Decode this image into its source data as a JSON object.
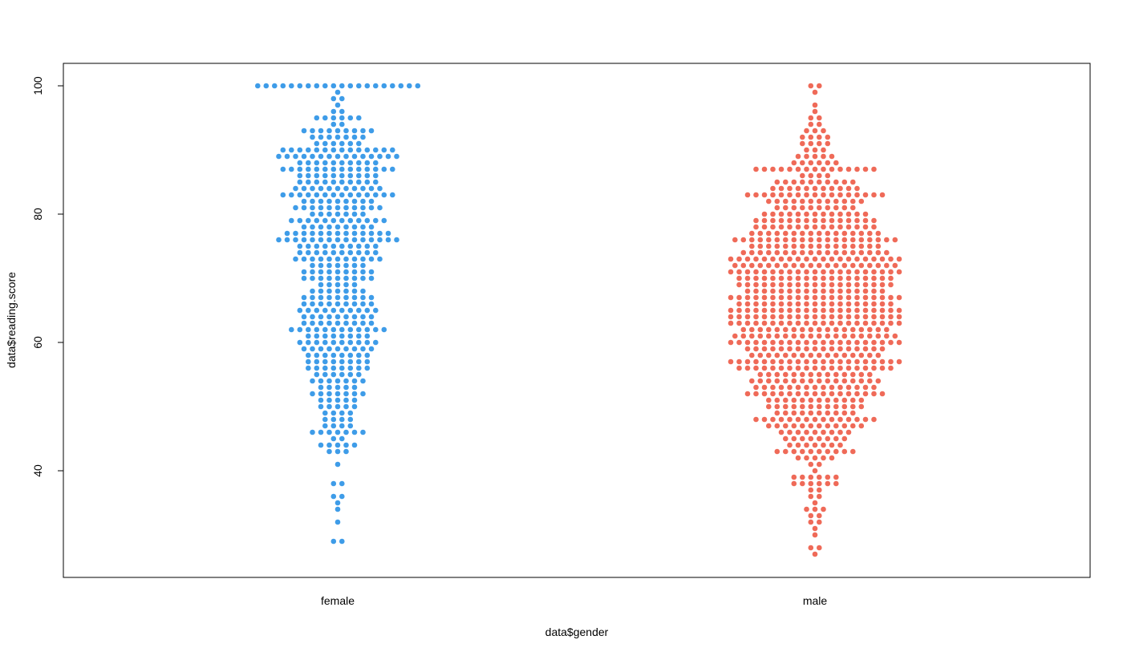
{
  "chart_data": {
    "type": "scatter",
    "subtype": "beeswarm",
    "title": "",
    "xlabel": "data$gender",
    "ylabel": "data$reading.score",
    "categories": [
      "female",
      "male"
    ],
    "ylim": [
      24,
      104
    ],
    "yticks": [
      40,
      60,
      80,
      100
    ],
    "grid": false,
    "legend": "none",
    "colors": {
      "female": "#3e9ce8",
      "male": "#ef6a58"
    },
    "series": [
      {
        "category": "female",
        "values": [
          100,
          100,
          100,
          100,
          100,
          100,
          100,
          100,
          100,
          100,
          100,
          100,
          100,
          100,
          100,
          100,
          100,
          100,
          100,
          100,
          99,
          98,
          98,
          97,
          96,
          96,
          95,
          95,
          95,
          95,
          95,
          95,
          94,
          94,
          93,
          93,
          93,
          93,
          93,
          93,
          93,
          93,
          93,
          92,
          92,
          92,
          92,
          92,
          92,
          92,
          91,
          91,
          91,
          91,
          91,
          91,
          90,
          90,
          90,
          90,
          90,
          90,
          90,
          90,
          90,
          90,
          90,
          90,
          90,
          90,
          89,
          89,
          89,
          89,
          89,
          89,
          89,
          89,
          89,
          89,
          89,
          89,
          89,
          89,
          89,
          88,
          88,
          88,
          88,
          88,
          88,
          88,
          88,
          88,
          88,
          87,
          87,
          87,
          87,
          87,
          87,
          87,
          87,
          87,
          87,
          87,
          87,
          87,
          87,
          86,
          86,
          86,
          86,
          86,
          86,
          86,
          86,
          86,
          86,
          85,
          85,
          85,
          85,
          85,
          85,
          85,
          85,
          85,
          85,
          84,
          84,
          84,
          84,
          84,
          84,
          84,
          84,
          84,
          84,
          84,
          83,
          83,
          83,
          83,
          83,
          83,
          83,
          83,
          83,
          83,
          83,
          83,
          83,
          83,
          82,
          82,
          82,
          82,
          82,
          82,
          82,
          82,
          82,
          81,
          81,
          81,
          81,
          81,
          81,
          81,
          81,
          81,
          81,
          81,
          80,
          80,
          80,
          80,
          80,
          80,
          80,
          79,
          79,
          79,
          79,
          79,
          79,
          79,
          79,
          79,
          79,
          79,
          79,
          78,
          78,
          78,
          78,
          78,
          78,
          78,
          78,
          78,
          77,
          77,
          77,
          77,
          77,
          77,
          77,
          77,
          77,
          77,
          77,
          77,
          77,
          76,
          76,
          76,
          76,
          76,
          76,
          76,
          76,
          76,
          76,
          76,
          76,
          76,
          76,
          76,
          75,
          75,
          75,
          75,
          75,
          75,
          75,
          75,
          75,
          75,
          74,
          74,
          74,
          74,
          74,
          74,
          74,
          74,
          74,
          74,
          73,
          73,
          73,
          73,
          73,
          73,
          73,
          73,
          73,
          73,
          73,
          72,
          72,
          72,
          72,
          72,
          72,
          72,
          71,
          71,
          71,
          71,
          71,
          71,
          71,
          71,
          71,
          70,
          70,
          70,
          70,
          70,
          70,
          70,
          70,
          70,
          69,
          69,
          69,
          69,
          69,
          68,
          68,
          68,
          68,
          68,
          68,
          68,
          67,
          67,
          67,
          67,
          67,
          67,
          67,
          67,
          67,
          66,
          66,
          66,
          66,
          66,
          66,
          66,
          66,
          66,
          65,
          65,
          65,
          65,
          65,
          65,
          65,
          65,
          65,
          65,
          64,
          64,
          64,
          64,
          64,
          64,
          64,
          64,
          64,
          63,
          63,
          63,
          63,
          63,
          63,
          63,
          63,
          63,
          62,
          62,
          62,
          62,
          62,
          62,
          62,
          62,
          62,
          62,
          62,
          62,
          61,
          61,
          61,
          61,
          61,
          61,
          61,
          61,
          60,
          60,
          60,
          60,
          60,
          60,
          60,
          60,
          60,
          60,
          59,
          59,
          59,
          59,
          59,
          59,
          59,
          59,
          59,
          58,
          58,
          58,
          58,
          58,
          58,
          58,
          58,
          57,
          57,
          57,
          57,
          57,
          57,
          57,
          57,
          56,
          56,
          56,
          56,
          56,
          56,
          56,
          56,
          55,
          55,
          55,
          55,
          55,
          55,
          54,
          54,
          54,
          54,
          54,
          54,
          54,
          53,
          53,
          53,
          53,
          53,
          52,
          52,
          52,
          52,
          52,
          52,
          52,
          51,
          51,
          51,
          51,
          51,
          50,
          50,
          50,
          50,
          50,
          49,
          49,
          49,
          49,
          48,
          48,
          48,
          48,
          47,
          47,
          47,
          47,
          46,
          46,
          46,
          46,
          46,
          46,
          46,
          45,
          45,
          44,
          44,
          44,
          44,
          44,
          43,
          43,
          43,
          41,
          38,
          38,
          36,
          36,
          35,
          34,
          32,
          29,
          29
        ]
      },
      {
        "category": "male",
        "values": [
          100,
          100,
          99,
          97,
          96,
          95,
          95,
          94,
          94,
          93,
          93,
          93,
          92,
          92,
          92,
          92,
          91,
          91,
          91,
          91,
          90,
          90,
          90,
          89,
          89,
          89,
          89,
          89,
          88,
          88,
          88,
          88,
          88,
          88,
          87,
          87,
          87,
          87,
          87,
          87,
          87,
          87,
          87,
          87,
          87,
          87,
          87,
          87,
          87,
          86,
          86,
          86,
          86,
          85,
          85,
          85,
          85,
          85,
          85,
          85,
          85,
          85,
          85,
          84,
          84,
          84,
          84,
          84,
          84,
          84,
          84,
          84,
          84,
          84,
          83,
          83,
          83,
          83,
          83,
          83,
          83,
          83,
          83,
          83,
          83,
          83,
          83,
          83,
          83,
          83,
          83,
          82,
          82,
          82,
          82,
          82,
          82,
          82,
          82,
          82,
          82,
          82,
          82,
          81,
          81,
          81,
          81,
          81,
          81,
          81,
          81,
          81,
          81,
          80,
          80,
          80,
          80,
          80,
          80,
          80,
          80,
          80,
          80,
          80,
          80,
          80,
          79,
          79,
          79,
          79,
          79,
          79,
          79,
          79,
          79,
          79,
          79,
          79,
          79,
          79,
          79,
          78,
          78,
          78,
          78,
          78,
          78,
          78,
          78,
          78,
          78,
          78,
          78,
          78,
          78,
          78,
          77,
          77,
          77,
          77,
          77,
          77,
          77,
          77,
          77,
          77,
          77,
          77,
          77,
          77,
          77,
          77,
          76,
          76,
          76,
          76,
          76,
          76,
          76,
          76,
          76,
          76,
          76,
          76,
          76,
          76,
          76,
          76,
          76,
          76,
          76,
          76,
          75,
          75,
          75,
          75,
          75,
          75,
          75,
          75,
          75,
          75,
          75,
          75,
          75,
          75,
          75,
          75,
          74,
          74,
          74,
          74,
          74,
          74,
          74,
          74,
          74,
          74,
          74,
          74,
          74,
          74,
          74,
          74,
          74,
          74,
          73,
          73,
          73,
          73,
          73,
          73,
          73,
          73,
          73,
          73,
          73,
          73,
          73,
          73,
          73,
          73,
          73,
          73,
          73,
          73,
          73,
          72,
          72,
          72,
          72,
          72,
          72,
          72,
          72,
          72,
          72,
          72,
          72,
          72,
          72,
          72,
          72,
          72,
          72,
          72,
          72,
          71,
          71,
          71,
          71,
          71,
          71,
          71,
          71,
          71,
          71,
          71,
          71,
          71,
          71,
          71,
          71,
          71,
          71,
          71,
          71,
          71,
          70,
          70,
          70,
          70,
          70,
          70,
          70,
          70,
          70,
          70,
          70,
          70,
          70,
          70,
          70,
          70,
          70,
          70,
          70,
          69,
          69,
          69,
          69,
          69,
          69,
          69,
          69,
          69,
          69,
          69,
          69,
          69,
          69,
          69,
          69,
          69,
          69,
          69,
          68,
          68,
          68,
          68,
          68,
          68,
          68,
          68,
          68,
          68,
          68,
          68,
          68,
          68,
          68,
          68,
          68,
          67,
          67,
          67,
          67,
          67,
          67,
          67,
          67,
          67,
          67,
          67,
          67,
          67,
          67,
          67,
          67,
          67,
          67,
          67,
          67,
          67,
          66,
          66,
          66,
          66,
          66,
          66,
          66,
          66,
          66,
          66,
          66,
          66,
          66,
          66,
          66,
          66,
          66,
          66,
          66,
          65,
          65,
          65,
          65,
          65,
          65,
          65,
          65,
          65,
          65,
          65,
          65,
          65,
          65,
          65,
          65,
          65,
          65,
          65,
          65,
          65,
          64,
          64,
          64,
          64,
          64,
          64,
          64,
          64,
          64,
          64,
          64,
          64,
          64,
          64,
          64,
          64,
          64,
          64,
          64,
          64,
          64,
          63,
          63,
          63,
          63,
          63,
          63,
          63,
          63,
          63,
          63,
          63,
          63,
          63,
          63,
          63,
          63,
          63,
          63,
          63,
          63,
          63,
          62,
          62,
          62,
          62,
          62,
          62,
          62,
          62,
          62,
          62,
          62,
          62,
          62,
          62,
          62,
          62,
          62,
          62,
          61,
          61,
          61,
          61,
          61,
          61,
          61,
          61,
          61,
          61,
          61,
          61,
          61,
          61,
          61,
          61,
          61,
          61,
          61,
          61,
          60,
          60,
          60,
          60,
          60,
          60,
          60,
          60,
          60,
          60,
          60,
          60,
          60,
          60,
          60,
          60,
          60,
          60,
          60,
          60,
          60,
          59,
          59,
          59,
          59,
          59,
          59,
          59,
          59,
          59,
          59,
          59,
          59,
          59,
          59,
          59,
          59,
          59,
          58,
          58,
          58,
          58,
          58,
          58,
          58,
          58,
          58,
          58,
          58,
          58,
          58,
          58,
          58,
          58,
          57,
          57,
          57,
          57,
          57,
          57,
          57,
          57,
          57,
          57,
          57,
          57,
          57,
          57,
          57,
          57,
          57,
          57,
          57,
          57,
          57,
          56,
          56,
          56,
          56,
          56,
          56,
          56,
          56,
          56,
          56,
          56,
          56,
          56,
          56,
          56,
          56,
          56,
          56,
          56,
          55,
          55,
          55,
          55,
          55,
          55,
          55,
          55,
          55,
          55,
          55,
          55,
          55,
          55,
          54,
          54,
          54,
          54,
          54,
          54,
          54,
          54,
          54,
          54,
          54,
          54,
          54,
          54,
          54,
          54,
          53,
          53,
          53,
          53,
          53,
          53,
          53,
          53,
          53,
          53,
          53,
          53,
          53,
          53,
          53,
          52,
          52,
          52,
          52,
          52,
          52,
          52,
          52,
          52,
          52,
          52,
          52,
          52,
          52,
          52,
          52,
          52,
          51,
          51,
          51,
          51,
          51,
          51,
          51,
          51,
          51,
          51,
          51,
          51,
          50,
          50,
          50,
          50,
          50,
          50,
          50,
          50,
          50,
          50,
          50,
          50,
          49,
          49,
          49,
          49,
          49,
          49,
          49,
          49,
          49,
          49,
          48,
          48,
          48,
          48,
          48,
          48,
          48,
          48,
          48,
          48,
          48,
          48,
          48,
          48,
          48,
          47,
          47,
          47,
          47,
          47,
          47,
          47,
          47,
          47,
          47,
          47,
          47,
          46,
          46,
          46,
          46,
          46,
          46,
          46,
          46,
          46,
          45,
          45,
          45,
          45,
          45,
          45,
          45,
          45,
          44,
          44,
          44,
          44,
          44,
          44,
          44,
          43,
          43,
          43,
          43,
          43,
          43,
          43,
          43,
          43,
          43,
          42,
          42,
          42,
          42,
          42,
          41,
          41,
          40,
          39,
          39,
          39,
          39,
          39,
          39,
          38,
          38,
          38,
          38,
          38,
          38,
          37,
          37,
          36,
          36,
          35,
          34,
          34,
          34,
          33,
          33,
          32,
          32,
          31,
          30,
          28,
          28,
          27
        ]
      }
    ]
  }
}
